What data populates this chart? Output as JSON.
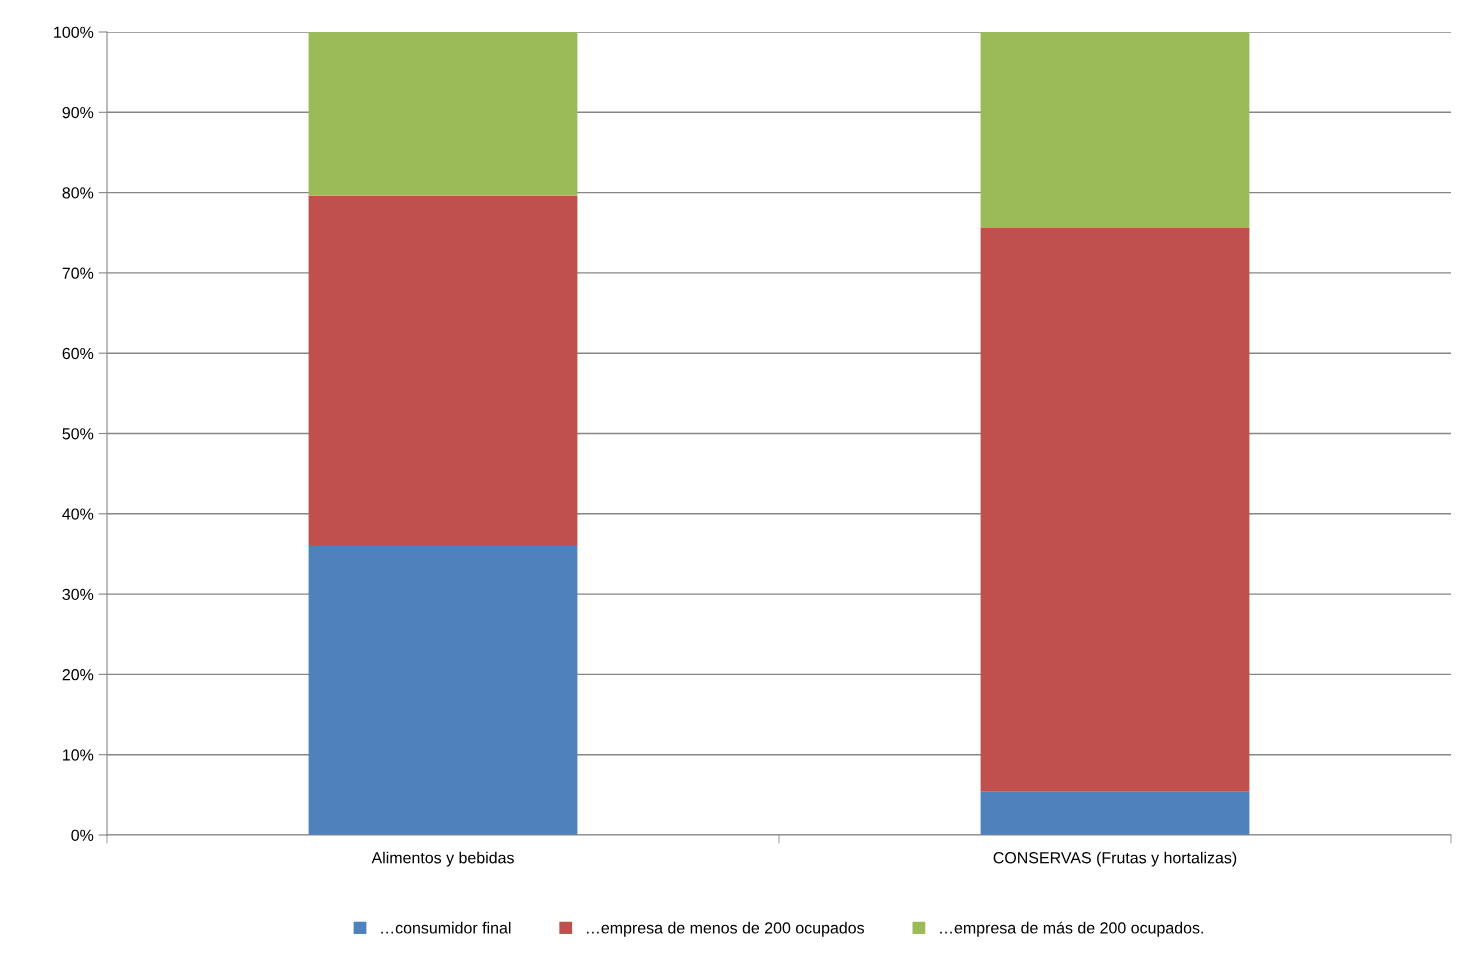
{
  "chart_data": {
    "type": "bar",
    "stacked": true,
    "categories": [
      "Alimentos y bebidas",
      "CONSERVAS (Frutas y hortalizas)"
    ],
    "series": [
      {
        "name": "…consumidor final",
        "color": "#4f81bd",
        "values": [
          36.0,
          5.4
        ]
      },
      {
        "name": "…empresa de menos de 200 ocupados",
        "color": "#c0504d",
        "values": [
          43.6,
          70.2
        ]
      },
      {
        "name": "…empresa de más de 200 ocupados.",
        "color": "#9bbb59",
        "values": [
          20.4,
          24.4
        ]
      }
    ],
    "ylim": [
      0,
      100
    ],
    "yticks": [
      {
        "value": 0,
        "label": "0%"
      },
      {
        "value": 10,
        "label": "10%"
      },
      {
        "value": 20,
        "label": "20%"
      },
      {
        "value": 30,
        "label": "30%"
      },
      {
        "value": 40,
        "label": "40%"
      },
      {
        "value": 50,
        "label": "50%"
      },
      {
        "value": 60,
        "label": "60%"
      },
      {
        "value": 70,
        "label": "70%"
      },
      {
        "value": 80,
        "label": "80%"
      },
      {
        "value": 90,
        "label": "90%"
      },
      {
        "value": 100,
        "label": "100%"
      }
    ],
    "grid": "y",
    "legend": "bottom"
  }
}
